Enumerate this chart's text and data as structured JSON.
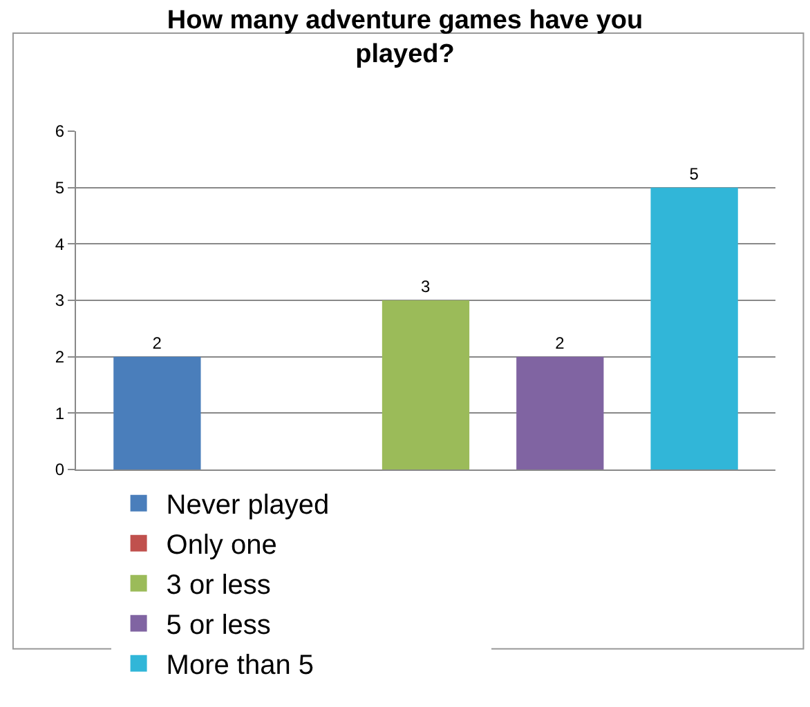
{
  "chart_data": {
    "type": "bar",
    "title": "How many adventure games have you played?",
    "categories": [
      null
    ],
    "series": [
      {
        "name": "Never played",
        "color": "#4a7ebb",
        "values": [
          2
        ],
        "value_labels": [
          "2"
        ]
      },
      {
        "name": "Only one",
        "color": "#c0504d",
        "values": [
          0
        ],
        "value_labels": [
          null
        ]
      },
      {
        "name": "3 or less",
        "color": "#9bbb59",
        "values": [
          3
        ],
        "value_labels": [
          "3"
        ]
      },
      {
        "name": "5 or less",
        "color": "#8064a2",
        "values": [
          2
        ],
        "value_labels": [
          "2"
        ]
      },
      {
        "name": "More than 5",
        "color": "#31b6d8",
        "values": [
          5
        ],
        "value_labels": [
          "5"
        ]
      }
    ],
    "ylim": [
      0,
      6
    ],
    "yticks": [
      0,
      1,
      2,
      3,
      4,
      5,
      6
    ],
    "grid": "y",
    "legend": "bottom"
  }
}
